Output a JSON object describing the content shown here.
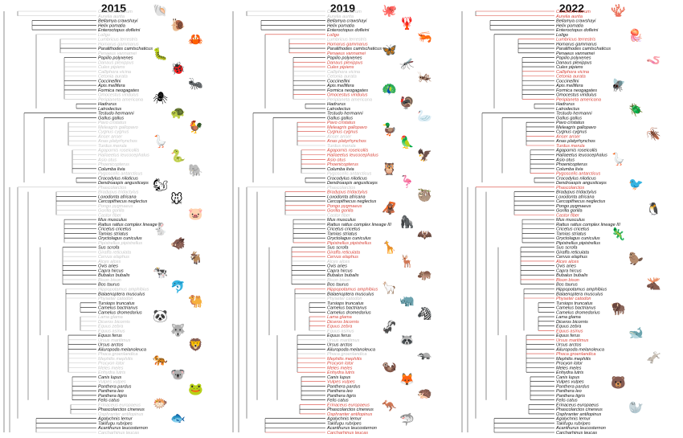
{
  "colors": {
    "existing": "#111111",
    "added": "#d8453a",
    "absent": "#c4c4c4"
  },
  "panels": [
    {
      "id": "p2015",
      "year": "2015",
      "added": [],
      "icons": [
        "shell-icon",
        "snail-icon",
        "crab-icon",
        "caterpillar-icon",
        "ladybug-icon",
        "ant-icon",
        "spider-icon",
        "turtle-icon",
        "chicken-icon",
        "goose-icon",
        "snake-icon",
        "elephant-icon",
        "squirrel-icon",
        "mouse-icon",
        "pig-icon",
        "rabbit-icon",
        "boar-icon",
        "goat-icon",
        "cow-icon",
        "dolphin-icon",
        "camel-icon",
        "panda-icon",
        "wolf-icon",
        "lion-icon",
        "tiger-icon",
        "koala-icon",
        "frog-icon",
        "blowfish-icon",
        "fish-icon"
      ]
    },
    {
      "id": "p2019",
      "year": "2019",
      "added": [
        "Loligo",
        "Homarus gammarus",
        "Penaeus vannamei",
        "Danaus plexippus",
        "Culex pipiens",
        "Omocestus viridulus",
        "Pavo cristatus",
        "Meleagris gallopavo",
        "Cygnus cygnus",
        "Anas platyrhynchos",
        "Agapornis roseicollis",
        "Haliaeetus leucocephalus",
        "Asio otus",
        "Phoenicopterus",
        "Bradypus tridactylus",
        "Pongo pygmaeus",
        "Gorilla gorilla",
        "Pipistrellus pipistrellus",
        "Giraffa reticulata",
        "Cervus elaphus",
        "Hippopotamus amphibius",
        "Lama glama",
        "Diceros bicornis",
        "Equus zebra",
        "Mephitis mephitis",
        "Procyon lotor",
        "Meles meles",
        "Enhydra lutris",
        "Vulpes vulpes",
        "Erinaceus europaeus",
        "Osphranter antilopinus",
        "Carcharhinus leucas"
      ],
      "icons": [
        "octopus-icon",
        "lobster-icon",
        "shrimp-icon",
        "butterfly-icon",
        "mosquito-icon",
        "cricket-icon",
        "peacock-icon",
        "turkey-icon",
        "swan-icon",
        "duck-icon",
        "parrot-icon",
        "eagle-icon",
        "owl-icon",
        "flamingo-icon",
        "sloth-icon",
        "orangutan-icon",
        "gorilla-icon",
        "bat-icon",
        "giraffe-icon",
        "deer-icon",
        "hippo-icon",
        "llama-icon",
        "rhino-icon",
        "zebra-icon",
        "skunk-icon",
        "raccoon-icon",
        "badger-icon",
        "otter-icon",
        "fox-icon",
        "hedgehog-icon",
        "kangaroo-icon",
        "shark-icon"
      ]
    },
    {
      "id": "p2022",
      "year": "2022",
      "added": [
        "Corallium rubrum",
        "Aurelia aurita",
        "Lumbricus terrestris",
        "Calliphora vicina",
        "Cetonia aurata",
        "Periplaneta americana",
        "Anser anser",
        "Turdus merula",
        "Pygoscelis antarcticus",
        "Phascolarctos",
        "Castor fiber",
        "Alces alces",
        "Bison bison",
        "Physeter catodon",
        "Equus asinus",
        "Ursus maritimus",
        "Phoca groenlandica"
      ],
      "icons": [
        "coral-icon",
        "jellyfish-icon",
        "worm-icon",
        "fly-icon",
        "beetle-icon",
        "cockroach-icon",
        "goose-icon",
        "blackbird-icon",
        "penguin-icon",
        "lizard-icon",
        "beaver-icon",
        "moose-icon",
        "bison-icon",
        "whale-icon",
        "donkey-icon",
        "polar-bear-icon",
        "seal-icon"
      ]
    }
  ],
  "species": [
    "Corallium rubrum",
    "Aurelia aurita",
    "Bellamya crawshayi",
    "Helix pomatia",
    "Enteroctopus dofleini",
    "Loligo",
    "Lumbricus terrestris",
    "Homarus gammarus",
    "Paralithodes camtschaticus",
    "Penaeus vannamei",
    "Papilio polyxenes",
    "Danaus plexippus",
    "Culex pipiens",
    "Calliphora vicina",
    "Cetonia aurata",
    "Coccinellini",
    "Apis mellifera",
    "Formica neogagates",
    "Omocestus viridulus",
    "Periplaneta americana",
    "Hadrurus",
    "Latrodectus",
    "Testudo hermanni",
    "Gallus gallus",
    "Pavo cristatus",
    "Meleagris gallopavo",
    "Cygnus cygnus",
    "Anser anser",
    "Anas platyrhynchos",
    "Turdus merula",
    "Agapornis roseicollis",
    "Haliaeetus leucocephalus",
    "Asio otus",
    "Phoenicopterus",
    "Columba livia",
    "Pygoscelis antarcticus",
    "Crocodylus niloticus",
    "Dendroaspis angusticeps",
    "Phascolarctos",
    "Bradypus tridactylus",
    "Loxodonta africana",
    "Cercopithecus neglectus",
    "Pongo pygmaeus",
    "Gorilla gorilla",
    "Castor fiber",
    "Mus musculus",
    "Rattus rattus complex lineage III",
    "Cricetus cricetus",
    "Tamias striatus",
    "Oryctolagus cuniculus",
    "Pipistrellus pipistrellus",
    "Sus scrofa",
    "Giraffa reticulata",
    "Cervus elaphus",
    "Alces alces",
    "Ovis aries",
    "Capra hircus",
    "Bubalus bubalis",
    "Bison bison",
    "Bos taurus",
    "Hippopotamus amphibius",
    "Balaenoptera musculus",
    "Physeter catodon",
    "Tursiops truncatus",
    "Camelus bactrianus",
    "Camelus dromedarius",
    "Lama glama",
    "Diceros bicornis",
    "Equus zebra",
    "Equus asinus",
    "Equus ferus",
    "Ursus maritimus",
    "Ursus arctos",
    "Ailuropoda melanoleuca",
    "Phoca groenlandica",
    "Mephitis mephitis",
    "Procyon lotor",
    "Meles meles",
    "Enhydra lutris",
    "Canis lupus",
    "Vulpes vulpes",
    "Panthera pardus",
    "Panthera leo",
    "Panthera tigris",
    "Felis catus",
    "Erinaceus europaeus",
    "Phascolarctos cinereus",
    "Osphranter antilopinus",
    "Agalychnis lemur",
    "Takifugu rubripes",
    "Acanthurus leucosternon",
    "Carcharhinus leucas"
  ],
  "absent_2015": [
    "Corallium rubrum",
    "Aurelia aurita",
    "Loligo",
    "Lumbricus terrestris",
    "Homarus gammarus",
    "Penaeus vannamei",
    "Danaus plexippus",
    "Culex pipiens",
    "Calliphora vicina",
    "Cetonia aurata",
    "Omocestus viridulus",
    "Periplaneta americana",
    "Pavo cristatus",
    "Meleagris gallopavo",
    "Cygnus cygnus",
    "Anser anser",
    "Anas platyrhynchos",
    "Turdus merula",
    "Agapornis roseicollis",
    "Haliaeetus leucocephalus",
    "Asio otus",
    "Phoenicopterus",
    "Pygoscelis antarcticus",
    "Phascolarctos",
    "Bradypus tridactylus",
    "Pongo pygmaeus",
    "Gorilla gorilla",
    "Castor fiber",
    "Pipistrellus pipistrellus",
    "Giraffa reticulata",
    "Cervus elaphus",
    "Alces alces",
    "Bison bison",
    "Hippopotamus amphibius",
    "Physeter catodon",
    "Lama glama",
    "Diceros bicornis",
    "Equus zebra",
    "Equus asinus",
    "Ursus maritimus",
    "Phoca groenlandica",
    "Mephitis mephitis",
    "Procyon lotor",
    "Meles meles",
    "Enhydra lutris",
    "Vulpes vulpes",
    "Erinaceus europaeus",
    "Osphranter antilopinus",
    "Carcharhinus leucas"
  ]
}
